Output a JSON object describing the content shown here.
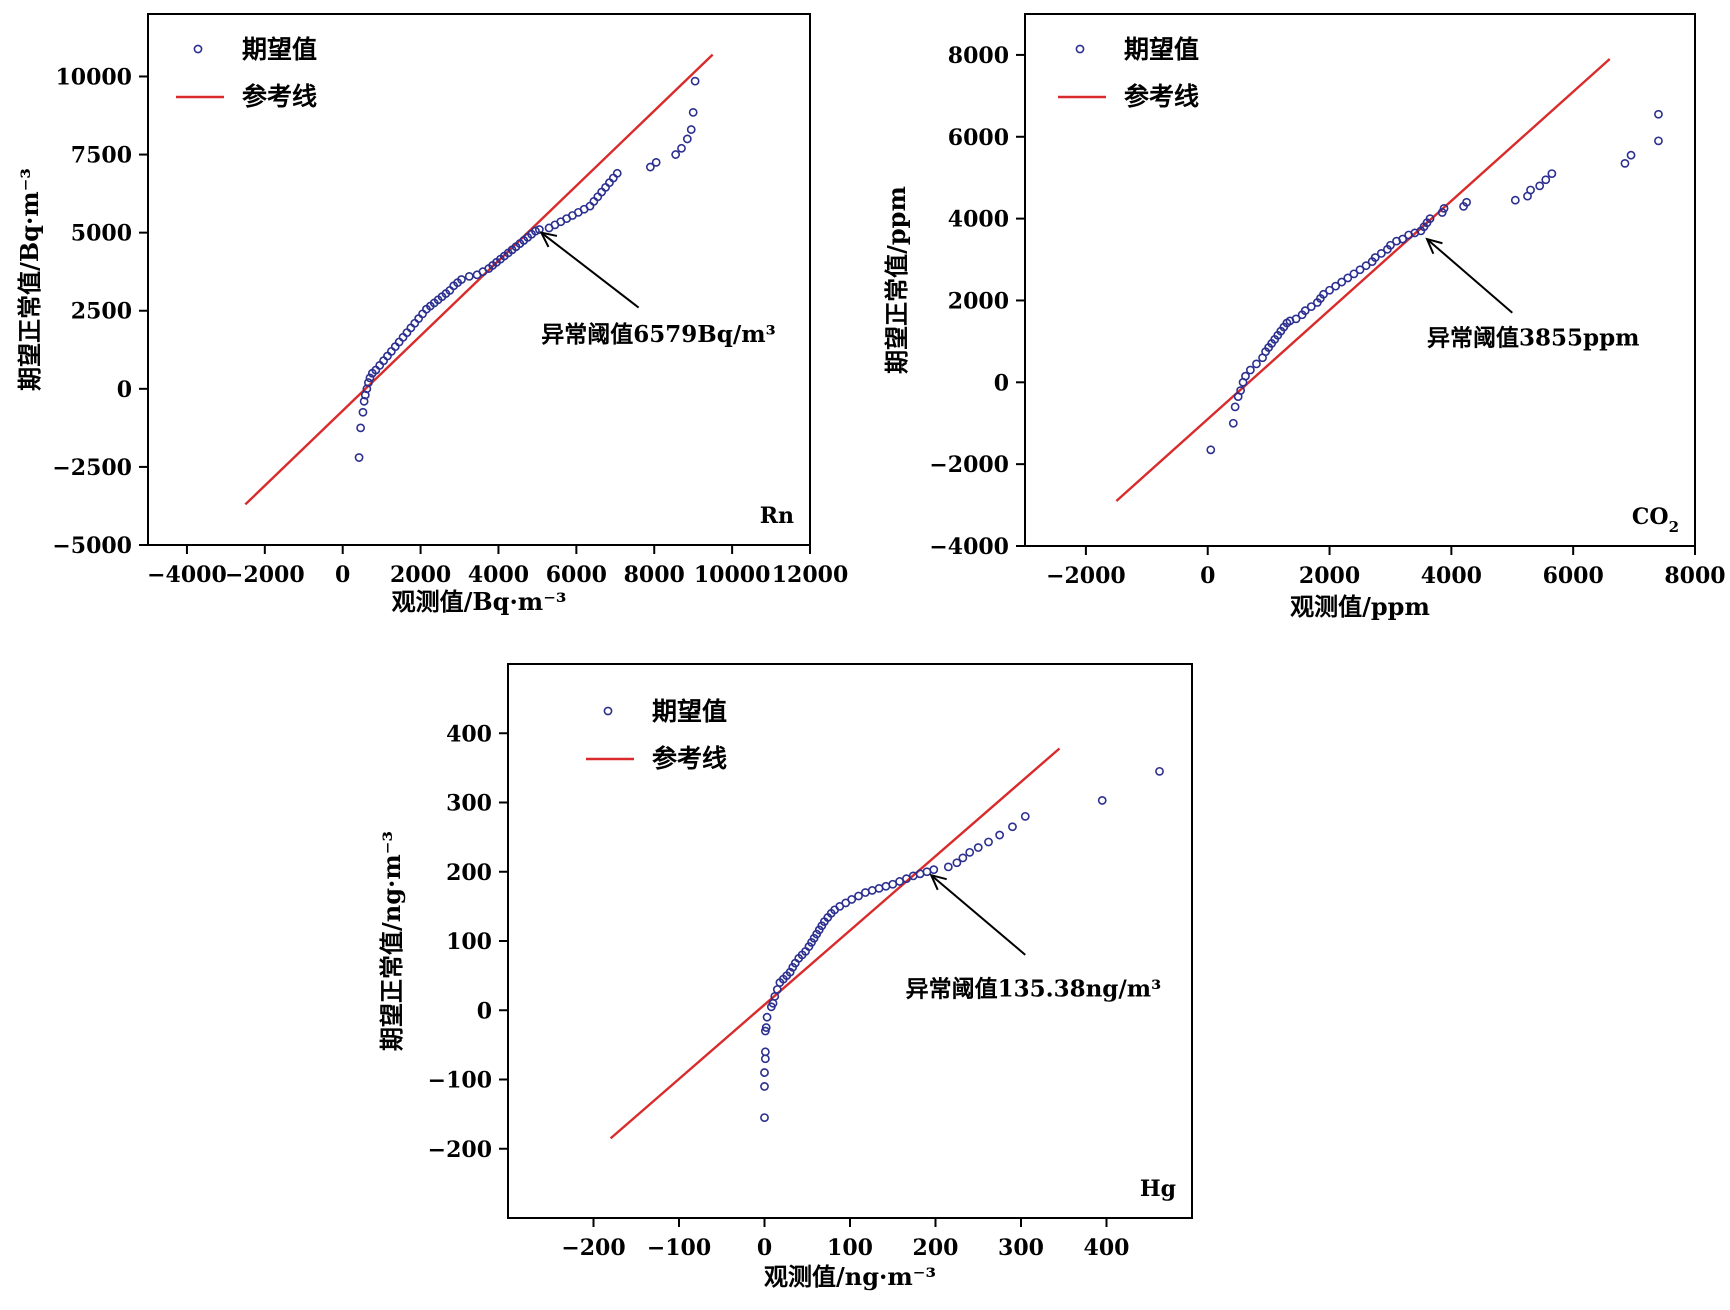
{
  "chart_data": [
    {
      "type": "scatter",
      "id": "rn",
      "title": "",
      "corner_label": "Rn",
      "xlabel": "观测值/Bq·m⁻³",
      "ylabel": "期望正常值/Bq·m⁻³",
      "xlim": [
        -5000,
        12000
      ],
      "ylim": [
        -5000,
        12000
      ],
      "xticks": [
        -4000,
        -2000,
        0,
        2000,
        4000,
        6000,
        8000,
        10000,
        12000
      ],
      "xtick_labels": [
        "−4000",
        "−2000",
        "0",
        "2000",
        "4000",
        "6000",
        "8000",
        "10000",
        "12000"
      ],
      "yticks": [
        -5000,
        -2500,
        0,
        2500,
        5000,
        7500,
        10000
      ],
      "ytick_labels": [
        "−5000",
        "−2500",
        "0",
        "2500",
        "5000",
        "7500",
        "10000"
      ],
      "legend": {
        "position": "top-left",
        "entries": [
          "期望值",
          "参考线"
        ]
      },
      "colors": {
        "points": "#2b2f8f",
        "line": "#d92b2b"
      },
      "reference_line": [
        [
          -2500,
          -3700
        ],
        [
          9500,
          10700
        ]
      ],
      "annotation": {
        "text": "异常阈值6579Bq/m³",
        "arrow_tip": [
          5100,
          5000
        ],
        "arrow_tail": [
          7600,
          2600
        ],
        "text_anchor": [
          5100,
          1500
        ]
      },
      "series": [
        {
          "name": "期望值",
          "points": [
            [
              420,
              -2200
            ],
            [
              460,
              -1250
            ],
            [
              520,
              -750
            ],
            [
              550,
              -400
            ],
            [
              580,
              -200
            ],
            [
              620,
              0
            ],
            [
              660,
              200
            ],
            [
              700,
              350
            ],
            [
              760,
              500
            ],
            [
              850,
              600
            ],
            [
              950,
              750
            ],
            [
              1050,
              900
            ],
            [
              1150,
              1050
            ],
            [
              1250,
              1200
            ],
            [
              1350,
              1350
            ],
            [
              1450,
              1500
            ],
            [
              1550,
              1650
            ],
            [
              1650,
              1800
            ],
            [
              1750,
              1950
            ],
            [
              1850,
              2100
            ],
            [
              1950,
              2250
            ],
            [
              2050,
              2400
            ],
            [
              2150,
              2550
            ],
            [
              2250,
              2650
            ],
            [
              2350,
              2750
            ],
            [
              2450,
              2850
            ],
            [
              2550,
              2950
            ],
            [
              2650,
              3050
            ],
            [
              2750,
              3150
            ],
            [
              2850,
              3300
            ],
            [
              2950,
              3400
            ],
            [
              3050,
              3500
            ],
            [
              3250,
              3600
            ],
            [
              3450,
              3650
            ],
            [
              3600,
              3750
            ],
            [
              3750,
              3850
            ],
            [
              3850,
              3950
            ],
            [
              3950,
              4050
            ],
            [
              4050,
              4150
            ],
            [
              4150,
              4250
            ],
            [
              4250,
              4350
            ],
            [
              4350,
              4450
            ],
            [
              4450,
              4550
            ],
            [
              4550,
              4650
            ],
            [
              4650,
              4750
            ],
            [
              4750,
              4850
            ],
            [
              4850,
              4950
            ],
            [
              4950,
              5050
            ],
            [
              5050,
              5100
            ],
            [
              5300,
              5150
            ],
            [
              5450,
              5250
            ],
            [
              5600,
              5350
            ],
            [
              5750,
              5450
            ],
            [
              5900,
              5550
            ],
            [
              6050,
              5650
            ],
            [
              6200,
              5750
            ],
            [
              6350,
              5850
            ],
            [
              6450,
              6000
            ],
            [
              6550,
              6150
            ],
            [
              6650,
              6300
            ],
            [
              6750,
              6450
            ],
            [
              6850,
              6600
            ],
            [
              6950,
              6750
            ],
            [
              7050,
              6900
            ],
            [
              7900,
              7100
            ],
            [
              8050,
              7250
            ],
            [
              8550,
              7500
            ],
            [
              8700,
              7700
            ],
            [
              8850,
              8000
            ],
            [
              8950,
              8300
            ],
            [
              9000,
              8850
            ],
            [
              9050,
              9850
            ]
          ]
        }
      ]
    },
    {
      "type": "scatter",
      "id": "co2",
      "title": "",
      "corner_label": "CO",
      "corner_label_sub": "2",
      "xlabel": "观测值/ppm",
      "ylabel": "期望正常值/ppm",
      "xlim": [
        -3000,
        8000
      ],
      "ylim": [
        -4000,
        9000
      ],
      "xticks": [
        -2000,
        0,
        2000,
        4000,
        6000,
        8000
      ],
      "xtick_labels": [
        "−2000",
        "0",
        "2000",
        "4000",
        "6000",
        "8000"
      ],
      "yticks": [
        -4000,
        -2000,
        0,
        2000,
        4000,
        6000,
        8000
      ],
      "ytick_labels": [
        "−4000",
        "−2000",
        "0",
        "2000",
        "4000",
        "6000",
        "8000"
      ],
      "legend": {
        "position": "top-left",
        "entries": [
          "期望值",
          "参考线"
        ]
      },
      "colors": {
        "points": "#2b2f8f",
        "line": "#d92b2b"
      },
      "reference_line": [
        [
          -1500,
          -2900
        ],
        [
          6600,
          7900
        ]
      ],
      "annotation": {
        "text": "异常阈值3855ppm",
        "arrow_tip": [
          3600,
          3500
        ],
        "arrow_tail": [
          5000,
          1700
        ],
        "text_anchor": [
          3600,
          900
        ]
      },
      "series": [
        {
          "name": "期望值",
          "points": [
            [
              50,
              -1650
            ],
            [
              420,
              -1000
            ],
            [
              450,
              -600
            ],
            [
              500,
              -350
            ],
            [
              540,
              -200
            ],
            [
              580,
              0
            ],
            [
              620,
              150
            ],
            [
              700,
              300
            ],
            [
              800,
              450
            ],
            [
              900,
              600
            ],
            [
              950,
              750
            ],
            [
              1000,
              850
            ],
            [
              1050,
              950
            ],
            [
              1100,
              1050
            ],
            [
              1150,
              1150
            ],
            [
              1200,
              1250
            ],
            [
              1250,
              1350
            ],
            [
              1300,
              1450
            ],
            [
              1350,
              1500
            ],
            [
              1450,
              1550
            ],
            [
              1550,
              1650
            ],
            [
              1600,
              1750
            ],
            [
              1700,
              1850
            ],
            [
              1800,
              1950
            ],
            [
              1850,
              2050
            ],
            [
              1900,
              2150
            ],
            [
              2000,
              2250
            ],
            [
              2100,
              2350
            ],
            [
              2200,
              2450
            ],
            [
              2300,
              2550
            ],
            [
              2400,
              2650
            ],
            [
              2500,
              2750
            ],
            [
              2600,
              2850
            ],
            [
              2700,
              2950
            ],
            [
              2750,
              3050
            ],
            [
              2850,
              3150
            ],
            [
              2950,
              3250
            ],
            [
              3000,
              3350
            ],
            [
              3100,
              3450
            ],
            [
              3200,
              3500
            ],
            [
              3300,
              3600
            ],
            [
              3400,
              3650
            ],
            [
              3500,
              3700
            ],
            [
              3550,
              3800
            ],
            [
              3600,
              3900
            ],
            [
              3650,
              4000
            ],
            [
              3850,
              4150
            ],
            [
              3880,
              4250
            ],
            [
              4200,
              4300
            ],
            [
              4250,
              4400
            ],
            [
              5050,
              4450
            ],
            [
              5250,
              4550
            ],
            [
              5300,
              4700
            ],
            [
              5450,
              4800
            ],
            [
              5550,
              4950
            ],
            [
              5650,
              5100
            ],
            [
              6850,
              5350
            ],
            [
              6950,
              5550
            ],
            [
              7400,
              5900
            ],
            [
              7400,
              6550
            ]
          ]
        }
      ]
    },
    {
      "type": "scatter",
      "id": "hg",
      "title": "",
      "corner_label": "Hg",
      "xlabel": "观测值/ng·m⁻³",
      "ylabel": "期望正常值/ng·m⁻³",
      "xlim": [
        -300,
        500
      ],
      "ylim": [
        -300,
        500
      ],
      "xticks": [
        -200,
        -100,
        0,
        100,
        200,
        300,
        400
      ],
      "xtick_labels": [
        "−200",
        "−100",
        "0",
        "100",
        "200",
        "300",
        "400"
      ],
      "yticks": [
        -200,
        -100,
        0,
        100,
        200,
        300,
        400
      ],
      "ytick_labels": [
        "−200",
        "−100",
        "0",
        "100",
        "200",
        "300",
        "400"
      ],
      "legend": {
        "position": "top-left",
        "entries": [
          "期望值",
          "参考线"
        ]
      },
      "colors": {
        "points": "#2b2f8f",
        "line": "#d92b2b"
      },
      "reference_line": [
        [
          -180,
          -185
        ],
        [
          345,
          378
        ]
      ],
      "annotation": {
        "text": "异常阈值135.38ng/m³",
        "arrow_tip": [
          195,
          195
        ],
        "arrow_tail": [
          305,
          80
        ],
        "text_anchor": [
          165,
          20
        ]
      },
      "series": [
        {
          "name": "期望值",
          "points": [
            [
              0,
              -155
            ],
            [
              0,
              -110
            ],
            [
              0,
              -90
            ],
            [
              1,
              -70
            ],
            [
              1,
              -60
            ],
            [
              1,
              -30
            ],
            [
              2,
              -25
            ],
            [
              3,
              -10
            ],
            [
              8,
              5
            ],
            [
              10,
              10
            ],
            [
              12,
              20
            ],
            [
              15,
              30
            ],
            [
              18,
              40
            ],
            [
              22,
              45
            ],
            [
              26,
              50
            ],
            [
              30,
              55
            ],
            [
              33,
              62
            ],
            [
              36,
              68
            ],
            [
              40,
              75
            ],
            [
              44,
              80
            ],
            [
              48,
              85
            ],
            [
              52,
              92
            ],
            [
              55,
              98
            ],
            [
              58,
              104
            ],
            [
              61,
              110
            ],
            [
              64,
              116
            ],
            [
              67,
              122
            ],
            [
              70,
              128
            ],
            [
              74,
              134
            ],
            [
              78,
              140
            ],
            [
              82,
              145
            ],
            [
              88,
              150
            ],
            [
              95,
              155
            ],
            [
              102,
              160
            ],
            [
              110,
              165
            ],
            [
              118,
              170
            ],
            [
              126,
              173
            ],
            [
              134,
              176
            ],
            [
              142,
              179
            ],
            [
              150,
              182
            ],
            [
              158,
              186
            ],
            [
              166,
              190
            ],
            [
              174,
              194
            ],
            [
              182,
              197
            ],
            [
              190,
              200
            ],
            [
              198,
              203
            ],
            [
              215,
              207
            ],
            [
              225,
              213
            ],
            [
              232,
              220
            ],
            [
              240,
              228
            ],
            [
              250,
              235
            ],
            [
              262,
              243
            ],
            [
              275,
              253
            ],
            [
              290,
              265
            ],
            [
              305,
              280
            ],
            [
              395,
              303
            ],
            [
              462,
              345
            ]
          ]
        }
      ]
    }
  ]
}
